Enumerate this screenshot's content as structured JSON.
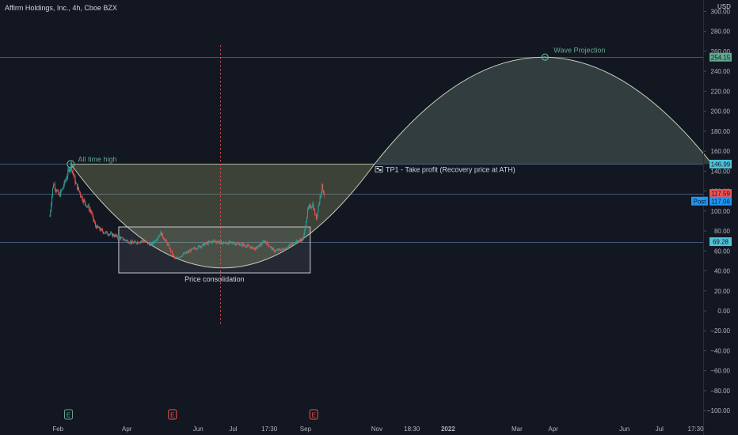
{
  "header": {
    "title": "Affirm Holdings, Inc., 4h, Cboe BZX",
    "currency": "USD"
  },
  "colors": {
    "background": "#131722",
    "up": "#26a69a",
    "down": "#ef5350",
    "arc": "#c5d1b3",
    "arc_fill": "rgba(170,180,110,0.28)",
    "projection_fill": "rgba(160,200,170,0.22)",
    "horizontal_line": "#5b7fa6",
    "vertical_line": "#e0534e",
    "badge_blue": "#4fc3d9",
    "badge_red": "#ef5350",
    "badge_post": "#2196f3",
    "badge_green": "#5fa890"
  },
  "chart_data": {
    "type": "candlestick",
    "symbol": "Affirm Holdings, Inc.",
    "interval": "4h",
    "exchange": "Cboe BZX",
    "y_ticks": [
      300,
      280,
      260,
      240,
      220,
      200,
      180,
      160,
      140,
      120,
      100,
      80,
      60,
      40,
      20,
      0,
      -20,
      -40,
      -60,
      -80,
      -100
    ],
    "y_tick_labels": [
      "300.00",
      "280.00",
      "260.00",
      "240.00",
      "220.00",
      "200.00",
      "180.00",
      "160.00",
      "140.00",
      "120.00",
      "100.00",
      "80.00",
      "60.00",
      "40.00",
      "20.00",
      "0.00",
      "−20.00",
      "−40.00",
      "−60.00",
      "−80.00",
      "−100.00"
    ],
    "ylim": [
      -106,
      306
    ],
    "x_labels": [
      "Feb",
      "Apr",
      "Jun",
      "Jul",
      "17:30",
      "Sep",
      "Nov",
      "18:30",
      "2022",
      "Mar",
      "Apr",
      "Jun",
      "Jul",
      "17:30"
    ],
    "x_label_positions": [
      "2021-02",
      "2021-04",
      "2021-06",
      "2021-07",
      "2021-08",
      "2021-09",
      "2021-11",
      "2021-12",
      "2022-01",
      "2022-03",
      "2022-04",
      "2022-06",
      "2022-07",
      "2022-08"
    ],
    "price_series": {
      "approx_path": [
        [
          "2021-01-25",
          95
        ],
        [
          "2021-01-28",
          128
        ],
        [
          "2021-02-02",
          115
        ],
        [
          "2021-02-06",
          126
        ],
        [
          "2021-02-10",
          140
        ],
        [
          "2021-02-12",
          146.99
        ],
        [
          "2021-02-16",
          128
        ],
        [
          "2021-02-22",
          112
        ],
        [
          "2021-03-01",
          100
        ],
        [
          "2021-03-05",
          85
        ],
        [
          "2021-03-12",
          79
        ],
        [
          "2021-03-20",
          76
        ],
        [
          "2021-03-28",
          72
        ],
        [
          "2021-04-06",
          68
        ],
        [
          "2021-04-14",
          70
        ],
        [
          "2021-04-22",
          66
        ],
        [
          "2021-04-30",
          78
        ],
        [
          "2021-05-06",
          66
        ],
        [
          "2021-05-12",
          52
        ],
        [
          "2021-05-20",
          57
        ],
        [
          "2021-05-28",
          62
        ],
        [
          "2021-06-05",
          66
        ],
        [
          "2021-06-14",
          70
        ],
        [
          "2021-06-22",
          68
        ],
        [
          "2021-07-01",
          68
        ],
        [
          "2021-07-10",
          66
        ],
        [
          "2021-07-20",
          62
        ],
        [
          "2021-07-28",
          70
        ],
        [
          "2021-08-05",
          60
        ],
        [
          "2021-08-14",
          62
        ],
        [
          "2021-08-22",
          68
        ],
        [
          "2021-08-30",
          72
        ],
        [
          "2021-09-03",
          102
        ],
        [
          "2021-09-07",
          107
        ],
        [
          "2021-09-10",
          92
        ],
        [
          "2021-09-13",
          112
        ],
        [
          "2021-09-15",
          125
        ],
        [
          "2021-09-17",
          117
        ]
      ]
    },
    "horizontal_levels": [
      {
        "value": 254.15,
        "label": "254.15"
      },
      {
        "value": 146.99,
        "label": "146.99"
      },
      {
        "value": 117.59,
        "label": "117.59"
      },
      {
        "value": 69.28,
        "label": "69.28"
      }
    ],
    "price_badges": [
      {
        "value": 254.15,
        "label": "254.15",
        "kind": "projection"
      },
      {
        "value": 146.99,
        "label": "146.99",
        "kind": "level"
      },
      {
        "value": 117.59,
        "label": "117.59",
        "kind": "last"
      },
      {
        "value": 117.06,
        "label": "117.06",
        "kind": "post"
      },
      {
        "value": 69.28,
        "label": "69.28",
        "kind": "level"
      }
    ],
    "post_label": "Post",
    "annotations": {
      "ath": {
        "text": "All time high",
        "date": "2021-02-12",
        "value": 146.99
      },
      "projection": {
        "text": "Wave Projection",
        "date": "2022-03-25",
        "value": 254.15
      },
      "tp1": {
        "text": "TP1 - Take profit (Recovery price at ATH)",
        "value": 146.99
      },
      "consolidation": {
        "text": "Price consolidation",
        "x_start": "2021-03-25",
        "x_end": "2021-09-05",
        "y_low": 38,
        "y_high": 84
      }
    },
    "arc_cup": {
      "x_start": "2021-02-12",
      "x_end": "2021-10-30",
      "low": 43,
      "top": 146.99
    },
    "arc_projection": {
      "x_start": "2021-10-30",
      "x_end": "2022-08-15",
      "peak": 254.15,
      "base": 146.99
    },
    "vertical_marker": {
      "date": "2021-06-20",
      "y_top": 266,
      "y_bottom": -13
    },
    "earnings_markers": [
      {
        "label": "E",
        "kind": "positive",
        "date": "2021-02-10"
      },
      {
        "label": "E",
        "kind": "negative",
        "date": "2021-05-10"
      },
      {
        "label": "E",
        "kind": "negative",
        "date": "2021-09-08"
      }
    ],
    "grid": false,
    "legend": "none"
  }
}
